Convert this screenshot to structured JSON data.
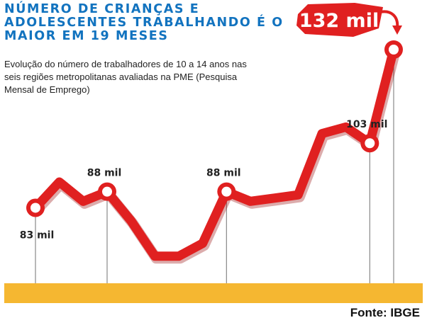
{
  "header": {
    "title": "NÚMERO DE CRIANÇAS E ADOLESCENTES TRABALHANDO É O MAIOR EM 19 MESES",
    "subtitle": "Evolução do número de trabalhadores de 10 a 14 anos nas seis regiões metropolitanas avaliadas na PME (Pesquisa Mensal de Emprego)"
  },
  "footer": {
    "source": "Fonte: IBGE"
  },
  "colors": {
    "line": "#e02020",
    "title": "#1273bf",
    "baseline": "#f5b731",
    "badge": "#e02020"
  },
  "chart_data": {
    "type": "line",
    "title": "NÚMERO DE CRIANÇAS E ADOLESCENTES TRABALHANDO É O MAIOR EM 19 MESES",
    "subtitle": "Evolução do número de trabalhadores de 10 a 14 anos nas seis regiões metropolitanas avaliadas na PME (Pesquisa Mensal de Emprego)",
    "xlabel": "",
    "ylabel": "",
    "unit": "mil",
    "grid": false,
    "ylim": [
      60,
      135
    ],
    "series": [
      {
        "values": [
          83,
          91,
          85,
          88,
          79,
          68,
          68,
          72,
          88,
          85,
          86,
          87,
          106,
          108,
          103,
          132
        ],
        "labels": [
          {
            "index": 0,
            "text": "83 mil"
          },
          {
            "index": 3,
            "text": "88 mil"
          },
          {
            "index": 8,
            "text": "88 mil"
          },
          {
            "index": 14,
            "text": "103 mil"
          },
          {
            "index": 15,
            "text": "132 mil"
          }
        ]
      }
    ]
  }
}
